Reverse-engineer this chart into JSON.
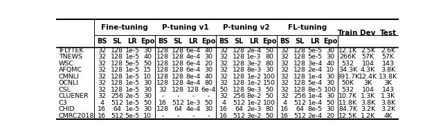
{
  "group_labels": [
    "Fine-tuning",
    "P-tuning v1",
    "P-tuning v2",
    "FL-tuning"
  ],
  "sub_headers": [
    "BS",
    "SL",
    "LR",
    "Epo"
  ],
  "extra_cols": [
    "Train",
    "Dev",
    "Test"
  ],
  "rows": [
    [
      "IFLYTEK",
      "32",
      "128",
      "1e-5",
      "30",
      "128",
      "128",
      "6e-4",
      "40",
      "32",
      "128",
      "2e-4",
      "50",
      "32",
      "128",
      "5e-5",
      "30",
      "12.1K",
      "2.5K",
      "2.6K"
    ],
    [
      "TNEWS",
      "32",
      "128",
      "1e-5",
      "40",
      "128",
      "128",
      "4e-4",
      "30",
      "32",
      "128",
      "1e-3",
      "80",
      "32",
      "128",
      "5e-5",
      "30",
      "266K",
      "57K",
      "57K"
    ],
    [
      "WSC",
      "32",
      "128",
      "5e-5",
      "50",
      "128",
      "128",
      "6e-4",
      "20",
      "32",
      "128",
      "3e-2",
      "80",
      "32",
      "128",
      "3e-4",
      "40",
      "532",
      "104",
      "143"
    ],
    [
      "AFQMC",
      "32",
      "128",
      "1e-5",
      "15",
      "128",
      "128",
      "6e-4",
      "30",
      "32",
      "128",
      "8e-3",
      "30",
      "32",
      "128",
      "2e-4",
      "10",
      "34.3K",
      "4.3K",
      "3.8K"
    ],
    [
      "CMNLI",
      "32",
      "128",
      "1e-5",
      "10",
      "128",
      "128",
      "8e-4",
      "40",
      "32",
      "128",
      "1e-2",
      "100",
      "32",
      "128",
      "1e-4",
      "30",
      "391.7K",
      "12.4K",
      "13.8K"
    ],
    [
      "OCNLI",
      "32",
      "128",
      "1e-5",
      "30",
      "128",
      "128",
      "4e-4",
      "80",
      "32",
      "128",
      "1e-2",
      "150",
      "32",
      "128",
      "5e-4",
      "30",
      "50K",
      "3K",
      "3K"
    ],
    [
      "CSL",
      "32",
      "128",
      "1e-5",
      "30",
      "32",
      "128",
      "128",
      "6e-4",
      "50",
      "128",
      "9e-3",
      "50",
      "32",
      "128",
      "8e-5",
      "100",
      "532",
      "104",
      "143"
    ],
    [
      "CLUENER",
      "32",
      "256",
      "2e-5",
      "30",
      "-",
      "-",
      "-",
      "-",
      "32",
      "256",
      "8e-2",
      "50",
      "32",
      "256",
      "1e-4",
      "30",
      "10.7K",
      "1.3K",
      "1.3K"
    ],
    [
      "C3",
      "4",
      "512",
      "1e-5",
      "50",
      "16",
      "512",
      "1e-3",
      "50",
      "4",
      "512",
      "1e-2",
      "100",
      "4",
      "512",
      "1e-4",
      "50",
      "11.8K",
      "3.8K",
      "3.8K"
    ],
    [
      "CHID",
      "16",
      "64",
      "1e-5",
      "30",
      "128",
      "64",
      "4e-4",
      "30",
      "16",
      "64",
      "2e-3",
      "80",
      "16",
      "64",
      "8e-5",
      "30",
      "84.7K",
      "3.2K",
      "3.2K"
    ],
    [
      "CMRC2018",
      "16",
      "512",
      "5e-5",
      "10",
      "-",
      "-",
      "-",
      "-",
      "16",
      "512",
      "3e-2",
      "50",
      "16",
      "512",
      "2e-4",
      "20",
      "12.5K",
      "1.2K",
      "4K"
    ]
  ],
  "font_size": 6.8,
  "header_font_size": 7.5,
  "bg_color": "#ffffff"
}
